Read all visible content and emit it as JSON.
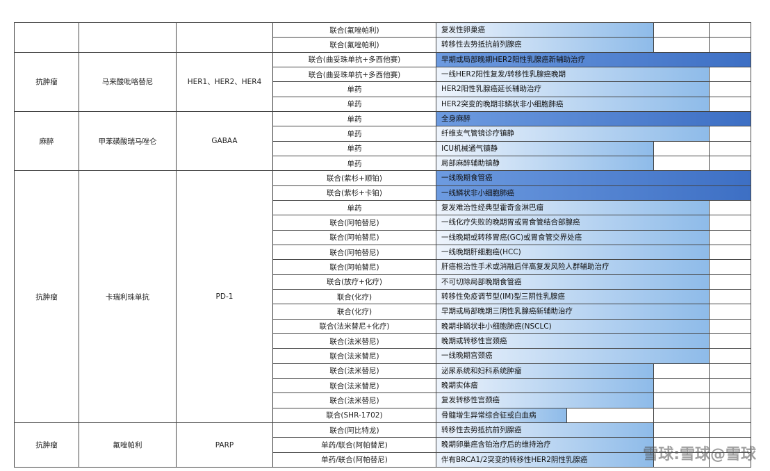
{
  "table": {
    "groups": [
      {
        "rows": [
          {
            "regimen": "联合(氟唑帕利)",
            "indication": "复发性卵巢癌",
            "fill": 1
          },
          {
            "regimen": "联合(氟唑帕利)",
            "indication": "转移性去势抵抗前列腺癌",
            "fill": 1
          }
        ]
      },
      {
        "category": "抗肿瘤",
        "drug": "马来酸吡咯替尼",
        "target": "HER1、HER2、HER4",
        "rows": [
          {
            "regimen": "联合(曲妥珠单抗+多西他赛)",
            "indication": "早期或局部晚期HER2阳性乳腺癌新辅助治疗",
            "fill": 3
          },
          {
            "regimen": "联合(曲妥珠单抗+多西他赛)",
            "indication": "一线HER2阳性复发/转移性乳腺癌晚期",
            "fill": 2
          },
          {
            "regimen": "单药",
            "indication": "HER2阳性乳腺癌延长辅助治疗",
            "fill": 2
          },
          {
            "regimen": "单药",
            "indication": "HER2突变的晚期非鳞状非小细胞肺癌",
            "fill": 2
          }
        ]
      },
      {
        "category": "麻醉",
        "drug": "甲苯磺酸瑞马唑仑",
        "target": "GABAA",
        "rows": [
          {
            "regimen": "单药",
            "indication": "全身麻醉",
            "fill": 3
          },
          {
            "regimen": "单药",
            "indication": "纤维支气管镜诊疗镇静",
            "fill": 2
          },
          {
            "regimen": "单药",
            "indication": "ICU机械通气镇静",
            "fill": 1
          },
          {
            "regimen": "单药",
            "indication": "局部麻醉辅助镇静",
            "fill": 1
          }
        ]
      },
      {
        "category": "抗肿瘤",
        "drug": "卡瑞利珠单抗",
        "target": "PD-1",
        "rows": [
          {
            "regimen": "联合(紫杉+顺铂)",
            "indication": "一线晚期食管癌",
            "fill": 3
          },
          {
            "regimen": "联合(紫杉+卡铂)",
            "indication": "一线鳞状非小细胞肺癌",
            "fill": 3
          },
          {
            "regimen": "单药",
            "indication": "复发难治性经典型霍奇金淋巴瘤",
            "fill": 2
          },
          {
            "regimen": "联合(阿帕替尼)",
            "indication": "一线化疗失败的晚期胃或胃食管结合部腺癌",
            "fill": 2
          },
          {
            "regimen": "联合(阿帕替尼)",
            "indication": "一线晚期或转移胃癌(GC)或胃食管交界处癌",
            "fill": 2
          },
          {
            "regimen": "联合(阿帕替尼)",
            "indication": "一线晚期肝细胞癌(HCC)",
            "fill": 2
          },
          {
            "regimen": "联合(阿帕替尼)",
            "indication": "肝癌根治性手术或消融后伴高复发风险人群辅助治疗",
            "fill": 2
          },
          {
            "regimen": "联合(放疗+化疗)",
            "indication": "不可切除局部晚期食管癌",
            "fill": 2
          },
          {
            "regimen": "联合(化疗)",
            "indication": "转移性免疫调节型(IM)型三阴性乳腺癌",
            "fill": 2
          },
          {
            "regimen": "联合(化疗)",
            "indication": "早期或局部晚期三阴性乳腺癌新辅助治疗",
            "fill": 2
          },
          {
            "regimen": "联合(法米替尼+化疗)",
            "indication": "晚期非鳞状非小细胞肺癌(NSCLC)",
            "fill": 2
          },
          {
            "regimen": "联合(法米替尼)",
            "indication": "晚期或转移性宫颈癌",
            "fill": 2
          },
          {
            "regimen": "联合(法米替尼)",
            "indication": "一线晚期宫颈癌",
            "fill": 2
          },
          {
            "regimen": "联合(法米替尼)",
            "indication": "泌尿系统和妇科系统肿瘤",
            "fill": 1
          },
          {
            "regimen": "联合(法米替尼)",
            "indication": "晚期实体瘤",
            "fill": 1
          },
          {
            "regimen": "联合(法米替尼)",
            "indication": "复发转移性宫颈癌",
            "fill": 1
          },
          {
            "regimen": "联合(SHR-1702)",
            "indication": "骨髓增生异常综合征或白血病",
            "fill": 0.6
          }
        ]
      },
      {
        "category": "抗肿瘤",
        "drug": "氟唑帕利",
        "target": "PARP",
        "rows": [
          {
            "regimen": "联合(阿比特龙)",
            "indication": "转移性去势抵抗前列腺癌",
            "fill": 1
          },
          {
            "regimen": "单药/联合(阿帕替尼)",
            "indication": "晚期卵巢癌含铂治疗后的维持治疗",
            "fill": 1
          },
          {
            "regimen": "单药/联合(阿帕替尼)",
            "indication": "伴有BRCA1/2突变的转移性HER2阴性乳腺癌",
            "fill": 1
          }
        ]
      }
    ]
  },
  "watermark": "雪球:雪球@雪球"
}
